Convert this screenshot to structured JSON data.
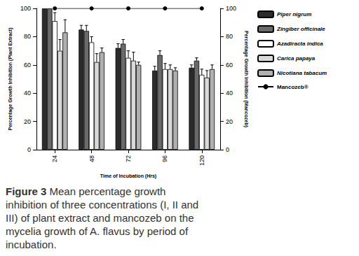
{
  "chart_data": {
    "type": "bar",
    "xlabel": "Time of Incubation (Hrs)",
    "ylabel": "Percentage Growth Inhibition (Plant Extract)",
    "y2label": "Percentage Growth Inhibition (Mancozeb)",
    "categories": [
      "24",
      "48",
      "72",
      "96",
      "120"
    ],
    "ylim": [
      0,
      100
    ],
    "yticks": [
      0,
      20,
      40,
      60,
      80,
      100
    ],
    "y2lim": [
      0,
      100
    ],
    "y2ticks": [
      0,
      20,
      40,
      60,
      80,
      100
    ],
    "grid": false,
    "legend": "right",
    "series": [
      {
        "name": "Piper nigrum",
        "color": "#2b2b2b",
        "values": [
          100,
          85,
          72,
          56,
          58
        ],
        "error": [
          0,
          3,
          3,
          3,
          2
        ]
      },
      {
        "name": "Zingiber officinale",
        "color": "#6a6a6a",
        "values": [
          100,
          84,
          75,
          67,
          63
        ],
        "error": [
          0,
          4,
          3,
          3,
          2
        ]
      },
      {
        "name": "Azadiracta indica",
        "color": "#ffffff",
        "values": [
          91,
          76,
          65,
          57,
          53
        ],
        "error": [
          6,
          4,
          5,
          4,
          4
        ]
      },
      {
        "name": "Carica papaya",
        "color": "#d9d9d9",
        "values": [
          70,
          62,
          63,
          57,
          51
        ],
        "error": [
          8,
          6,
          6,
          3,
          5
        ]
      },
      {
        "name": "Nicotiana tabacum",
        "color": "#b0b0b0",
        "values": [
          83,
          69,
          60,
          56,
          57
        ],
        "error": [
          9,
          3,
          2,
          2,
          3
        ]
      },
      {
        "name": "Mancozeb®",
        "type": "line",
        "axis": "y2",
        "color": "#000000",
        "marker": "circle",
        "line_style": "solid",
        "values": [
          100,
          100,
          100,
          100,
          100
        ]
      }
    ],
    "caption": {
      "label": "Figure 3",
      "text": "Mean percentage growth inhibition of three concentrations (I, II and III) of plant extract and mancozeb on the mycelia growth of A. flavus by period of incubation."
    }
  }
}
